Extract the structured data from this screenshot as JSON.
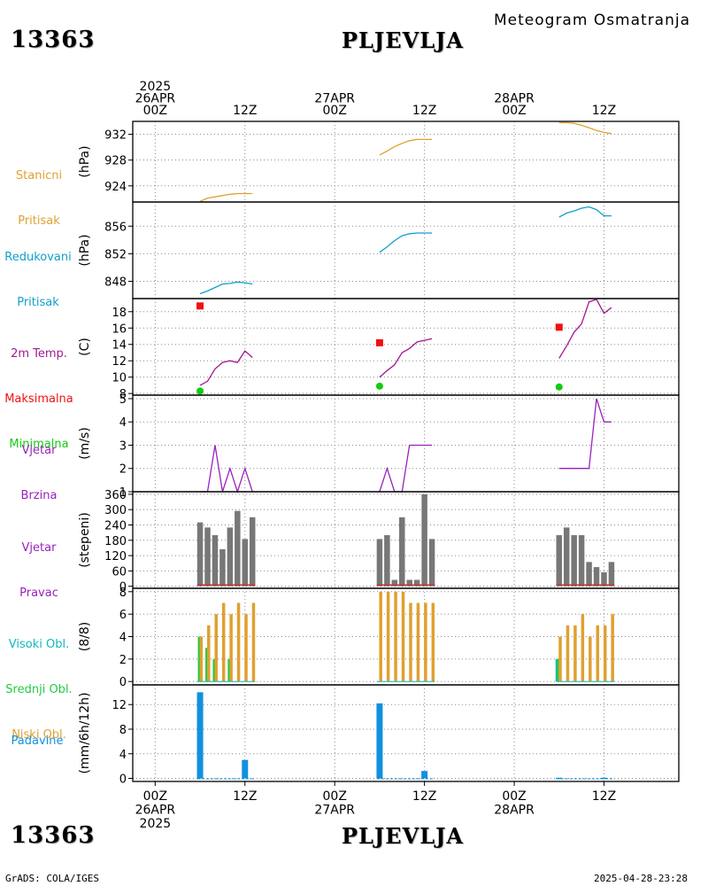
{
  "header": {
    "station_id": "13363",
    "station_name": "PLJEVLJA",
    "subtitle": "Meteogram Osmatranja"
  },
  "footer": {
    "credit": "GrADS: COLA/IGES",
    "timestamp": "2025-04-28-23:28"
  },
  "time_axis": {
    "top_labels": [
      {
        "lines": [
          "2025",
          "26APR",
          "00Z"
        ],
        "hour": 0
      },
      {
        "lines": [
          "12Z"
        ],
        "hour": 12
      },
      {
        "lines": [
          "27APR",
          "00Z"
        ],
        "hour": 24
      },
      {
        "lines": [
          "12Z"
        ],
        "hour": 36
      },
      {
        "lines": [
          "28APR",
          "00Z"
        ],
        "hour": 48
      },
      {
        "lines": [
          "12Z"
        ],
        "hour": 60
      }
    ],
    "bottom_labels": [
      {
        "lines": [
          "00Z",
          "26APR",
          "2025"
        ],
        "hour": 0
      },
      {
        "lines": [
          "12Z"
        ],
        "hour": 12
      },
      {
        "lines": [
          "00Z",
          "27APR"
        ],
        "hour": 24
      },
      {
        "lines": [
          "12Z"
        ],
        "hour": 36
      },
      {
        "lines": [
          "00Z",
          "28APR"
        ],
        "hour": 48
      },
      {
        "lines": [
          "12Z"
        ],
        "hour": 60
      }
    ],
    "xlim_hours": [
      -3,
      70
    ]
  },
  "colors": {
    "pressure": "#e0a030",
    "reduced": "#10a0c8",
    "temp": "#a01890",
    "tmax": "#ee1111",
    "tmin": "#11cc11",
    "wind": "#9922bb",
    "bars": "#777777",
    "high_cloud": "#10b8c0",
    "mid_cloud": "#22cc44",
    "low_cloud": "#e0a030",
    "precip": "#1090e0",
    "dir_line": "#cc3333"
  },
  "chart_data": [
    {
      "type": "line",
      "id": "pressure",
      "label_lines": [
        "Stanicni",
        "Pritisak"
      ],
      "ylabel": "(hPa)",
      "ylim": [
        921.5,
        934
      ],
      "yticks": [
        924,
        928,
        932
      ],
      "series": [
        {
          "x": [
            6,
            7,
            8,
            9,
            10,
            11,
            12,
            13
          ],
          "values": [
            921.6,
            922.1,
            922.3,
            922.5,
            922.7,
            922.8,
            922.8,
            922.8
          ]
        },
        {
          "x": [
            30,
            31,
            32,
            33,
            34,
            35,
            36,
            37
          ],
          "values": [
            928.8,
            929.4,
            930.1,
            930.6,
            931.0,
            931.2,
            931.2,
            931.2
          ]
        },
        {
          "x": [
            54,
            55,
            56,
            57,
            58,
            59,
            60,
            61
          ],
          "values": [
            933.8,
            933.8,
            933.7,
            933.4,
            933.0,
            932.6,
            932.3,
            932.1
          ]
        }
      ]
    },
    {
      "type": "line",
      "id": "reduced",
      "label_lines": [
        "Redukovani",
        "Pritisak"
      ],
      "ylabel": "(hPa)",
      "ylim": [
        845.5,
        859.5
      ],
      "yticks": [
        848,
        852,
        856
      ],
      "series": [
        {
          "x": [
            6,
            7,
            8,
            9,
            10,
            11,
            12,
            13
          ],
          "values": [
            846.2,
            846.6,
            847.1,
            847.6,
            847.7,
            847.9,
            847.8,
            847.6
          ]
        },
        {
          "x": [
            30,
            31,
            32,
            33,
            34,
            35,
            36,
            37
          ],
          "values": [
            852.2,
            853.0,
            853.9,
            854.6,
            854.9,
            855.0,
            855.0,
            855.0
          ]
        },
        {
          "x": [
            54,
            55,
            56,
            57,
            58,
            59,
            60,
            61
          ],
          "values": [
            857.3,
            857.9,
            858.2,
            858.6,
            858.8,
            858.4,
            857.5,
            857.5
          ]
        }
      ]
    },
    {
      "type": "line",
      "id": "temperature",
      "label_lines": [
        "2m Temp.",
        "Maksimalna",
        "Minimalna"
      ],
      "label_colors": [
        "#a01890",
        "#ee1111",
        "#11cc11"
      ],
      "ylabel": "(C)",
      "ylim": [
        7.8,
        19.6
      ],
      "yticks": [
        8,
        10,
        12,
        14,
        16,
        18
      ],
      "series": [
        {
          "x": [
            6,
            7,
            8,
            9,
            10,
            11,
            12,
            13
          ],
          "values": [
            9.0,
            9.5,
            11.0,
            11.8,
            12.0,
            11.8,
            13.2,
            12.4
          ]
        },
        {
          "x": [
            30,
            31,
            32,
            33,
            34,
            35,
            36,
            37
          ],
          "values": [
            10.0,
            10.8,
            11.5,
            13.0,
            13.5,
            14.3,
            14.5,
            14.7
          ]
        },
        {
          "x": [
            54,
            55,
            56,
            57,
            58,
            59,
            60,
            61
          ],
          "values": [
            12.3,
            13.8,
            15.5,
            16.5,
            19.2,
            19.5,
            17.8,
            18.5
          ]
        }
      ],
      "tmax": {
        "x": [
          6,
          30,
          54
        ],
        "values": [
          18.7,
          14.2,
          16.1
        ]
      },
      "tmin": {
        "x": [
          6,
          30,
          54
        ],
        "values": [
          8.3,
          8.9,
          8.8
        ]
      }
    },
    {
      "type": "line",
      "id": "wind_speed",
      "label_lines": [
        "Vjetar",
        "Brzina"
      ],
      "ylabel": "(m/s)",
      "ylim": [
        1,
        5.15
      ],
      "yticks": [
        1,
        2,
        3,
        4,
        5
      ],
      "series": [
        {
          "x": [
            6,
            7,
            8,
            9,
            10,
            11,
            12,
            13
          ],
          "values": [
            1,
            1,
            3,
            1,
            2,
            1,
            2,
            1
          ]
        },
        {
          "x": [
            30,
            31,
            32,
            33,
            34,
            35,
            36,
            37
          ],
          "values": [
            1,
            2,
            1,
            1,
            3,
            3,
            3,
            3
          ]
        },
        {
          "x": [
            54,
            55,
            56,
            57,
            58,
            59,
            60,
            61
          ],
          "values": [
            2,
            2,
            2,
            2,
            2,
            5,
            4,
            4
          ]
        }
      ]
    },
    {
      "type": "bar",
      "id": "wind_direction",
      "label_lines": [
        "Vjetar",
        "Pravac"
      ],
      "ylabel": "(stepeni)",
      "ylim": [
        -8,
        370
      ],
      "yticks": [
        0,
        60,
        120,
        180,
        240,
        300,
        360
      ],
      "series": [
        {
          "x": [
            6,
            7,
            8,
            9,
            10,
            11,
            12,
            13
          ],
          "values": [
            250,
            230,
            200,
            145,
            230,
            295,
            185,
            270
          ]
        },
        {
          "x": [
            30,
            31,
            32,
            33,
            34,
            35,
            36,
            37
          ],
          "values": [
            185,
            200,
            25,
            270,
            25,
            25,
            360,
            185
          ]
        },
        {
          "x": [
            54,
            55,
            56,
            57,
            58,
            59,
            60,
            61
          ],
          "values": [
            200,
            230,
            200,
            200,
            95,
            75,
            55,
            95
          ]
        }
      ]
    },
    {
      "type": "bar",
      "id": "clouds",
      "label_lines": [
        "Visoki Obl.",
        "Srednji Obl.",
        "Niski Obl."
      ],
      "label_colors": [
        "#10b8c0",
        "#22cc44",
        "#e0a030"
      ],
      "ylabel": "(8/8)",
      "ylim": [
        -0.3,
        8.3
      ],
      "yticks": [
        0,
        2,
        4,
        6,
        8
      ],
      "series": [
        {
          "name": "Visoki Obl.",
          "x": [
            6,
            7,
            8,
            9,
            10,
            11,
            12,
            13,
            30,
            31,
            32,
            33,
            34,
            35,
            36,
            37,
            54,
            55,
            56,
            57,
            58,
            59,
            60,
            61
          ],
          "values": [
            0,
            0,
            0,
            0,
            0,
            0,
            0,
            0,
            0,
            0,
            0,
            0,
            0,
            0,
            0,
            0,
            2,
            0,
            0,
            0,
            0,
            0,
            0,
            0
          ]
        },
        {
          "name": "Srednji Obl.",
          "x": [
            6,
            7,
            8,
            9,
            10,
            11,
            12,
            13,
            30,
            31,
            32,
            33,
            34,
            35,
            36,
            37,
            54,
            55,
            56,
            57,
            58,
            59,
            60,
            61
          ],
          "values": [
            4,
            3,
            2,
            0,
            2,
            0,
            0,
            0,
            0,
            0,
            0,
            0,
            0,
            0,
            0,
            0,
            2,
            0,
            0,
            0,
            0,
            0,
            0,
            0
          ]
        },
        {
          "name": "Niski Obl.",
          "x": [
            6,
            7,
            8,
            9,
            10,
            11,
            12,
            13,
            30,
            31,
            32,
            33,
            34,
            35,
            36,
            37,
            54,
            55,
            56,
            57,
            58,
            59,
            60,
            61
          ],
          "values": [
            4,
            5,
            6,
            7,
            6,
            7,
            6,
            7,
            8,
            8,
            8,
            8,
            7,
            7,
            7,
            7,
            4,
            5,
            5,
            6,
            4,
            5,
            5,
            6
          ]
        }
      ]
    },
    {
      "type": "bar",
      "id": "precipitation",
      "label_lines": [
        "Padavine"
      ],
      "ylabel": "(mm/6h/12h)",
      "ylim": [
        -0.5,
        15.2
      ],
      "yticks": [
        0,
        4,
        8,
        12
      ],
      "series": [
        {
          "x": [
            6,
            12,
            30,
            36,
            54,
            60
          ],
          "values": [
            14.0,
            3.0,
            12.2,
            1.2,
            0.1,
            0.1
          ]
        }
      ]
    }
  ]
}
